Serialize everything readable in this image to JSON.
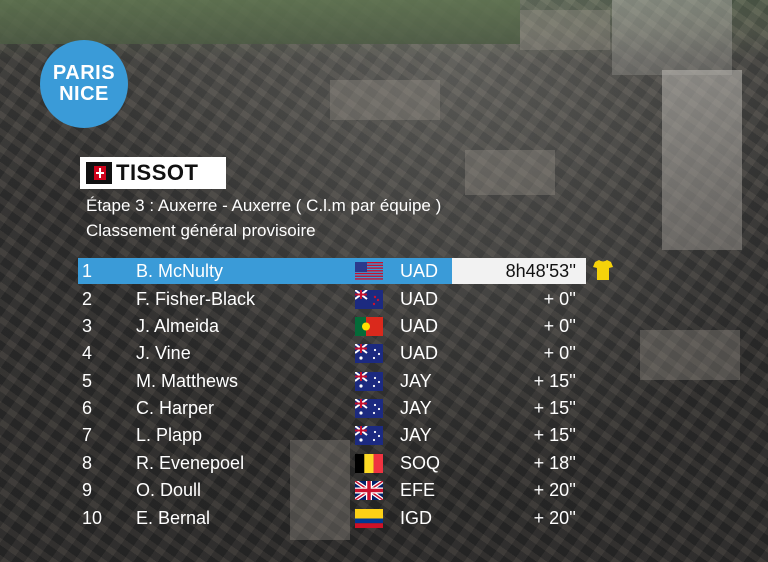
{
  "logo": {
    "line1": "PARIS",
    "line2": "NICE"
  },
  "sponsor": {
    "name": "TISSOT"
  },
  "header": {
    "stage": "Étape 3 : Auxerre - Auxerre ( C.l.m par équipe )",
    "classification": "Classement général provisoire"
  },
  "standings": [
    {
      "pos": "1",
      "rider": "B. McNulty",
      "flag": "usa-flag-icon",
      "team": "UAD",
      "time": "8h48'53''"
    },
    {
      "pos": "2",
      "rider": "F. Fisher-Black",
      "flag": "new-zealand-flag-icon",
      "team": "UAD",
      "time": "+ 0''"
    },
    {
      "pos": "3",
      "rider": "J. Almeida",
      "flag": "portugal-flag-icon",
      "team": "UAD",
      "time": "+ 0''"
    },
    {
      "pos": "4",
      "rider": "J. Vine",
      "flag": "australia-flag-icon",
      "team": "UAD",
      "time": "+ 0''"
    },
    {
      "pos": "5",
      "rider": "M. Matthews",
      "flag": "australia-flag-icon",
      "team": "JAY",
      "time": "+ 15''"
    },
    {
      "pos": "6",
      "rider": "C. Harper",
      "flag": "australia-flag-icon",
      "team": "JAY",
      "time": "+ 15''"
    },
    {
      "pos": "7",
      "rider": "L. Plapp",
      "flag": "australia-flag-icon",
      "team": "JAY",
      "time": "+ 15''"
    },
    {
      "pos": "8",
      "rider": "R. Evenepoel",
      "flag": "belgium-flag-icon",
      "team": "SOQ",
      "time": "+ 18''"
    },
    {
      "pos": "9",
      "rider": "O. Doull",
      "flag": "uk-flag-icon",
      "team": "EFE",
      "time": "+ 20''"
    },
    {
      "pos": "10",
      "rider": "E. Bernal",
      "flag": "colombia-flag-icon",
      "team": "IGD",
      "time": "+ 20''"
    }
  ],
  "leader_icon": "yellow-jersey-icon",
  "colors": {
    "accent": "#3a9bd8",
    "jersey": "#f5d20a"
  }
}
